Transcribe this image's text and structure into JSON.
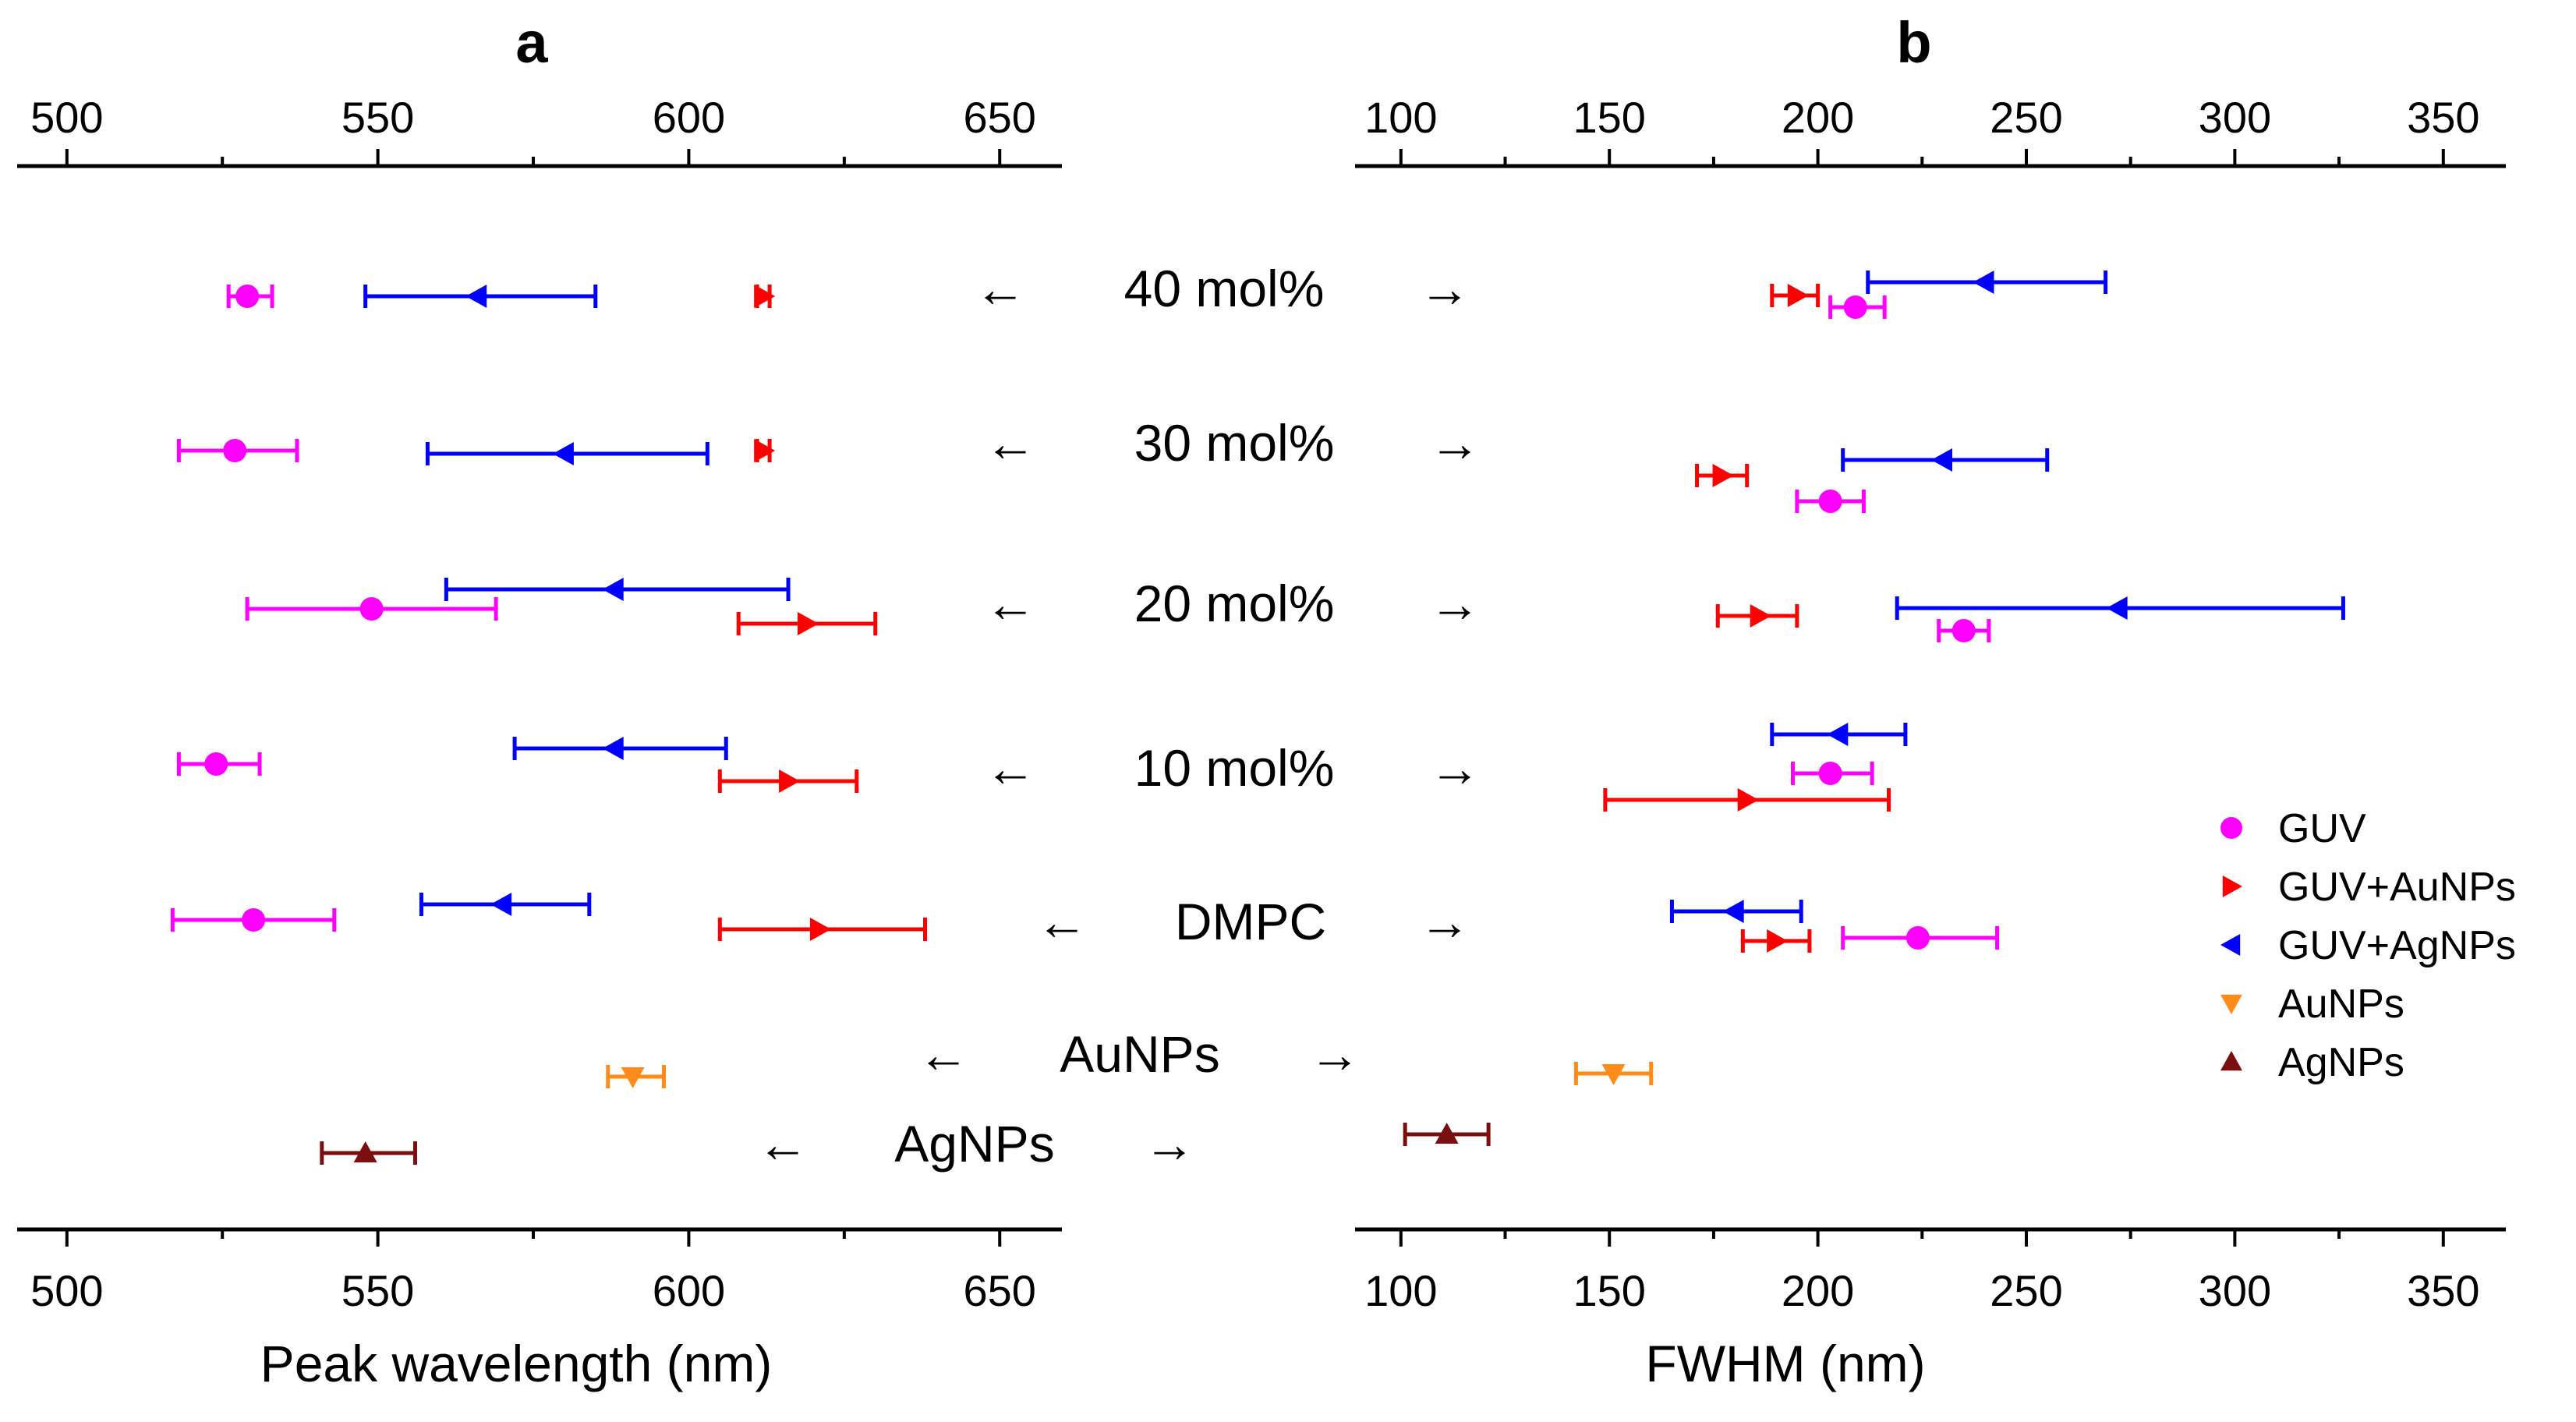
{
  "chart_data": [
    {
      "panel": "a",
      "type": "scatter",
      "title": "a",
      "xlabel": "Peak wavelength (nm)",
      "ylabel": "",
      "xlim": [
        492,
        660
      ],
      "xticks": [
        500,
        550,
        600,
        650
      ],
      "xticks_minor": [
        525,
        575,
        625
      ],
      "grid": false,
      "rows": [
        "40 mol%",
        "30 mol%",
        "20 mol%",
        "10 mol%",
        "DMPC",
        "AuNPs",
        "AgNPs"
      ],
      "series": [
        {
          "name": "GUV",
          "color": "#ff00ff",
          "marker": "circle",
          "points": [
            {
              "row": "40 mol%",
              "x": 529,
              "lo": 526,
              "hi": 533
            },
            {
              "row": "30 mol%",
              "x": 527,
              "lo": 518,
              "hi": 537
            },
            {
              "row": "20 mol%",
              "x": 549,
              "lo": 529,
              "hi": 569
            },
            {
              "row": "10 mol%",
              "x": 524,
              "lo": 518,
              "hi": 531
            },
            {
              "row": "DMPC",
              "x": 530,
              "lo": 517,
              "hi": 543
            }
          ]
        },
        {
          "name": "GUV+AuNPs",
          "color": "#ff0000",
          "marker": "triangle-right",
          "points": [
            {
              "row": "40 mol%",
              "x": 612,
              "lo": 611,
              "hi": 613
            },
            {
              "row": "30 mol%",
              "x": 612,
              "lo": 611,
              "hi": 613
            },
            {
              "row": "20 mol%",
              "x": 619,
              "lo": 608,
              "hi": 630
            },
            {
              "row": "10 mol%",
              "x": 616,
              "lo": 605,
              "hi": 627
            },
            {
              "row": "DMPC",
              "x": 621,
              "lo": 605,
              "hi": 638
            }
          ]
        },
        {
          "name": "GUV+AgNPs",
          "color": "#0000ff",
          "marker": "triangle-left",
          "points": [
            {
              "row": "40 mol%",
              "x": 566,
              "lo": 548,
              "hi": 585
            },
            {
              "row": "30 mol%",
              "x": 580,
              "lo": 558,
              "hi": 603
            },
            {
              "row": "20 mol%",
              "x": 588,
              "lo": 561,
              "hi": 616
            },
            {
              "row": "10 mol%",
              "x": 588,
              "lo": 572,
              "hi": 606
            },
            {
              "row": "DMPC",
              "x": 570,
              "lo": 557,
              "hi": 584
            }
          ]
        },
        {
          "name": "AuNPs",
          "color": "#ff8c1a",
          "marker": "triangle-down",
          "points": [
            {
              "row": "AuNPs",
              "x": 591,
              "lo": 587,
              "hi": 596
            }
          ]
        },
        {
          "name": "AgNPs",
          "color": "#7b0f0f",
          "marker": "triangle-up",
          "points": [
            {
              "row": "AgNPs",
              "x": 548,
              "lo": 541,
              "hi": 556
            }
          ]
        }
      ]
    },
    {
      "panel": "b",
      "type": "scatter",
      "title": "b",
      "xlabel": "FWHM (nm)",
      "ylabel": "",
      "xlim": [
        89,
        365
      ],
      "xticks": [
        100,
        150,
        200,
        250,
        300,
        350
      ],
      "xticks_minor": [
        125,
        175,
        225,
        275,
        325
      ],
      "grid": false,
      "rows": [
        "40 mol%",
        "30 mol%",
        "20 mol%",
        "10 mol%",
        "DMPC",
        "AuNPs",
        "AgNPs"
      ],
      "series": [
        {
          "name": "GUV",
          "color": "#ff00ff",
          "marker": "circle",
          "points": [
            {
              "row": "40 mol%",
              "x": 209,
              "lo": 203,
              "hi": 216
            },
            {
              "row": "30 mol%",
              "x": 203,
              "lo": 195,
              "hi": 211
            },
            {
              "row": "20 mol%",
              "x": 235,
              "lo": 229,
              "hi": 241
            },
            {
              "row": "10 mol%",
              "x": 203,
              "lo": 194,
              "hi": 213
            },
            {
              "row": "DMPC",
              "x": 224,
              "lo": 206,
              "hi": 243
            }
          ]
        },
        {
          "name": "GUV+AuNPs",
          "color": "#ff0000",
          "marker": "triangle-right",
          "points": [
            {
              "row": "40 mol%",
              "x": 195,
              "lo": 189,
              "hi": 200
            },
            {
              "row": "30 mol%",
              "x": 177,
              "lo": 171,
              "hi": 183
            },
            {
              "row": "20 mol%",
              "x": 186,
              "lo": 176,
              "hi": 195
            },
            {
              "row": "10 mol%",
              "x": 183,
              "lo": 149,
              "hi": 217
            },
            {
              "row": "DMPC",
              "x": 190,
              "lo": 182,
              "hi": 198
            }
          ]
        },
        {
          "name": "GUV+AgNPs",
          "color": "#0000ff",
          "marker": "triangle-left",
          "points": [
            {
              "row": "40 mol%",
              "x": 240,
              "lo": 212,
              "hi": 269
            },
            {
              "row": "30 mol%",
              "x": 230,
              "lo": 206,
              "hi": 255
            },
            {
              "row": "20 mol%",
              "x": 272,
              "lo": 219,
              "hi": 326
            },
            {
              "row": "10 mol%",
              "x": 205,
              "lo": 189,
              "hi": 221
            },
            {
              "row": "DMPC",
              "x": 180,
              "lo": 165,
              "hi": 196
            }
          ]
        },
        {
          "name": "AuNPs",
          "color": "#ff8c1a",
          "marker": "triangle-down",
          "points": [
            {
              "row": "AuNPs",
              "x": 151,
              "lo": 142,
              "hi": 160
            }
          ]
        },
        {
          "name": "AgNPs",
          "color": "#7b0f0f",
          "marker": "triangle-up",
          "points": [
            {
              "row": "AgNPs",
              "x": 111,
              "lo": 101,
              "hi": 121
            }
          ]
        }
      ]
    }
  ],
  "row_labels": {
    "left_arrow": "←",
    "right_arrow": "→",
    "items": [
      "40 mol%",
      "30 mol%",
      "20 mol%",
      "10 mol%",
      "DMPC",
      "AuNPs",
      "AgNPs"
    ]
  },
  "legend": {
    "position": "right",
    "items": [
      {
        "label": "GUV",
        "color": "#ff00ff",
        "marker": "circle"
      },
      {
        "label": "GUV+AuNPs",
        "color": "#ff0000",
        "marker": "triangle-right"
      },
      {
        "label": "GUV+AgNPs",
        "color": "#0000ff",
        "marker": "triangle-left"
      },
      {
        "label": "AuNPs",
        "color": "#ff8c1a",
        "marker": "triangle-down"
      },
      {
        "label": "AgNPs",
        "color": "#7b0f0f",
        "marker": "triangle-up"
      }
    ]
  }
}
